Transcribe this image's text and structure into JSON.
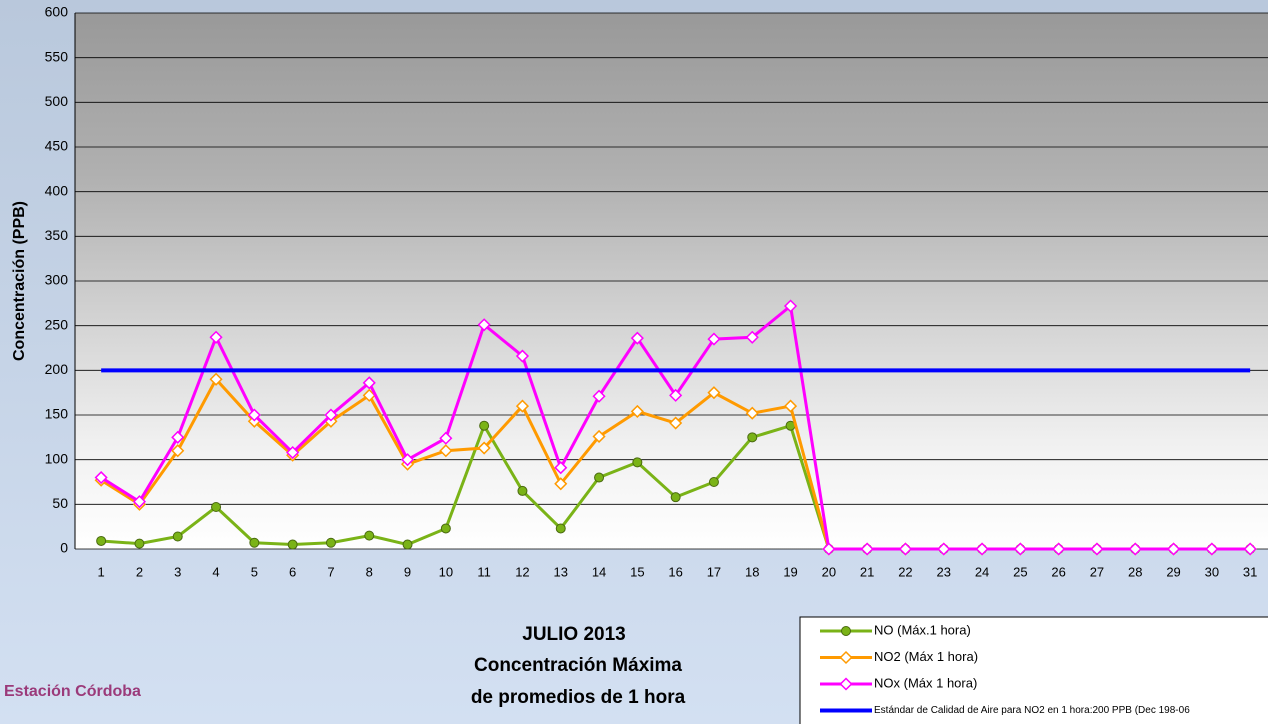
{
  "chart_data": {
    "type": "line",
    "title": [
      "JULIO 2013",
      "Concentración Máxima",
      "de promedios de 1 hora"
    ],
    "annotation": "Estación Córdoba",
    "y_label": "Concentración  (PPB)",
    "categories": [
      "1",
      "2",
      "3",
      "4",
      "5",
      "6",
      "7",
      "8",
      "9",
      "10",
      "11",
      "12",
      "13",
      "14",
      "15",
      "16",
      "17",
      "18",
      "19",
      "20",
      "21",
      "22",
      "23",
      "24",
      "25",
      "26",
      "27",
      "28",
      "29",
      "30",
      "31"
    ],
    "ylim": [
      0,
      600
    ],
    "yticks": [
      0,
      50,
      100,
      150,
      200,
      250,
      300,
      350,
      400,
      450,
      500,
      550,
      600
    ],
    "grid": true,
    "legend": "bottom-right",
    "series": [
      {
        "name": "NO (Máx.1 hora)",
        "color": "#7ab317",
        "marker": "circle",
        "values": [
          9,
          6,
          14,
          47,
          7,
          5,
          7,
          15,
          5,
          23,
          138,
          65,
          23,
          80,
          97,
          58,
          75,
          125,
          138,
          0,
          0,
          0,
          0,
          0,
          0,
          0,
          0,
          0,
          0,
          0,
          0
        ]
      },
      {
        "name": "NO2 (Máx 1 hora)",
        "color": "#ff9a00",
        "marker": "diamond",
        "values": [
          77,
          50,
          110,
          190,
          143,
          105,
          143,
          172,
          95,
          110,
          113,
          160,
          73,
          126,
          154,
          141,
          175,
          152,
          160,
          0,
          0,
          0,
          0,
          0,
          0,
          0,
          0,
          0,
          0,
          0,
          0
        ]
      },
      {
        "name": "NOx (Máx 1 hora)",
        "color": "#ff00ff",
        "marker": "diamond",
        "values": [
          80,
          53,
          125,
          237,
          150,
          108,
          150,
          186,
          100,
          124,
          251,
          216,
          91,
          171,
          236,
          172,
          235,
          237,
          272,
          0,
          0,
          0,
          0,
          0,
          0,
          0,
          0,
          0,
          0,
          0,
          0
        ]
      },
      {
        "name": "Estándar de Calidad de Aire para NO2 en 1 hora:200 PPB (Dec 198-06",
        "color": "#0000ff",
        "values": [
          200,
          200,
          200,
          200,
          200,
          200,
          200,
          200,
          200,
          200,
          200,
          200,
          200,
          200,
          200,
          200,
          200,
          200,
          200,
          200,
          200,
          200,
          200,
          200,
          200,
          200,
          200,
          200,
          200,
          200,
          200
        ]
      }
    ]
  }
}
